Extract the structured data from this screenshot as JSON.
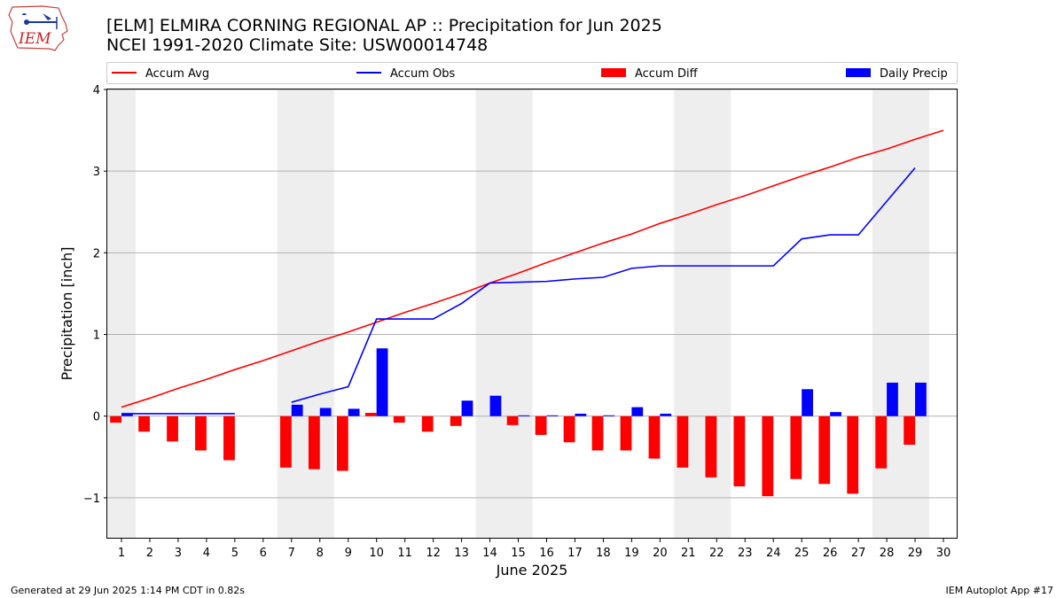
{
  "header": {
    "title_line1": "[ELM] ELMIRA CORNING REGIONAL AP :: Precipitation for Jun 2025",
    "title_line2": "NCEI 1991-2020 Climate Site: USW00014748",
    "logo_text": "IEM"
  },
  "footer": {
    "left": "Generated at 29 Jun 2025 1:14 PM CDT in 0.82s",
    "right": "IEM Autoplot App #17"
  },
  "chart_data": {
    "type": "bar",
    "xlabel": "June 2025",
    "ylabel": "Precipitation [inch]",
    "xlim": [
      0.5,
      30.5
    ],
    "ylim": [
      -1.5,
      4
    ],
    "x_ticks": [
      1,
      2,
      3,
      4,
      5,
      6,
      7,
      8,
      9,
      10,
      11,
      12,
      13,
      14,
      15,
      16,
      17,
      18,
      19,
      20,
      21,
      22,
      23,
      24,
      25,
      26,
      27,
      28,
      29,
      30
    ],
    "y_ticks": [
      -1,
      0,
      1,
      2,
      3,
      4
    ],
    "y_tick_labels": [
      "−1",
      "0",
      "1",
      "2",
      "3",
      "4"
    ],
    "grid": "horizontal",
    "legend_position": "top",
    "weekend_shading": [
      [
        0.5,
        1.5
      ],
      [
        6.5,
        8.5
      ],
      [
        13.5,
        15.5
      ],
      [
        20.5,
        22.5
      ],
      [
        27.5,
        29.5
      ]
    ],
    "series": [
      {
        "name": "Accum Avg",
        "type": "line",
        "color": "#ff0000",
        "x": [
          1,
          2,
          3,
          4,
          5,
          6,
          7,
          8,
          9,
          10,
          11,
          12,
          13,
          14,
          15,
          16,
          17,
          18,
          19,
          20,
          21,
          22,
          23,
          24,
          25,
          26,
          27,
          28,
          29,
          30
        ],
        "values": [
          0.11,
          0.22,
          0.34,
          0.45,
          0.57,
          0.68,
          0.8,
          0.92,
          1.03,
          1.15,
          1.27,
          1.38,
          1.5,
          1.63,
          1.75,
          1.88,
          2.0,
          2.12,
          2.23,
          2.36,
          2.47,
          2.59,
          2.7,
          2.82,
          2.94,
          3.05,
          3.17,
          3.27,
          3.39,
          3.5
        ]
      },
      {
        "name": "Accum Obs",
        "type": "line",
        "color": "#0000ff",
        "segments": [
          {
            "x": [
              1,
              2,
              3,
              4,
              5
            ],
            "values": [
              0.03,
              0.03,
              0.03,
              0.03,
              0.03
            ]
          },
          {
            "x": [
              7,
              8,
              9,
              10,
              11,
              12,
              13,
              14,
              15,
              16,
              17,
              18,
              19,
              20,
              21,
              22,
              23,
              24,
              25,
              26,
              27,
              28,
              29
            ],
            "values": [
              0.17,
              0.27,
              0.36,
              1.19,
              1.19,
              1.19,
              1.38,
              1.63,
              1.64,
              1.65,
              1.68,
              1.7,
              1.81,
              1.84,
              1.84,
              1.84,
              1.84,
              1.84,
              2.17,
              2.22,
              2.22,
              2.63,
              3.04
            ]
          }
        ]
      },
      {
        "name": "Accum Diff",
        "type": "bar",
        "color": "#ff0000",
        "offset": "left",
        "x": [
          1,
          2,
          3,
          4,
          5,
          7,
          8,
          9,
          10,
          11,
          12,
          13,
          15,
          16,
          17,
          18,
          19,
          20,
          21,
          22,
          23,
          24,
          25,
          26,
          27,
          28,
          29
        ],
        "values": [
          -0.08,
          -0.19,
          -0.31,
          -0.42,
          -0.54,
          -0.63,
          -0.65,
          -0.67,
          0.04,
          -0.08,
          -0.19,
          -0.12,
          -0.11,
          -0.23,
          -0.32,
          -0.42,
          -0.42,
          -0.52,
          -0.63,
          -0.75,
          -0.86,
          -0.98,
          -0.77,
          -0.83,
          -0.95,
          -0.64,
          -0.35
        ]
      },
      {
        "name": "Daily Precip",
        "type": "bar",
        "color": "#0000ff",
        "offset": "right",
        "x": [
          1,
          7,
          8,
          9,
          10,
          13,
          14,
          15,
          16,
          17,
          18,
          19,
          20,
          25,
          26,
          28,
          29
        ],
        "values": [
          0.03,
          0.14,
          0.1,
          0.09,
          0.83,
          0.19,
          0.25,
          0.01,
          0.01,
          0.03,
          0.01,
          0.11,
          0.03,
          0.33,
          0.05,
          0.41,
          0.41
        ]
      }
    ]
  }
}
